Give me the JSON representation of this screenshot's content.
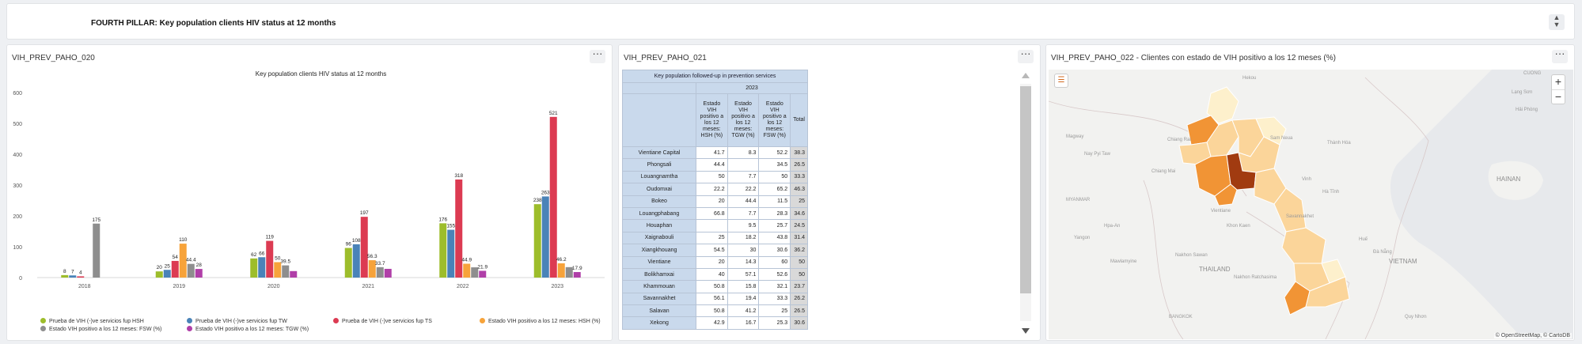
{
  "header": {
    "title": "FOURTH PILLAR: Key population clients HIV status at 12 months"
  },
  "panels": {
    "chart_panel": {
      "title": "VIH_PREV_PAHO_020"
    },
    "table_panel": {
      "title": "VIH_PREV_PAHO_021"
    },
    "map_panel": {
      "title": "VIH_PREV_PAHO_022 - Clientes con estado de VIH positivo a los 12 meses (%)"
    }
  },
  "chart_data": {
    "type": "bar",
    "title": "Key population clients HIV status at 12 months",
    "xlabel": "",
    "ylabel": "",
    "ylim": [
      0,
      600
    ],
    "yticks": [
      0,
      100,
      200,
      300,
      400,
      500,
      600
    ],
    "categories": [
      "2018",
      "2019",
      "2020",
      "2021",
      "2022",
      "2023"
    ],
    "series": [
      {
        "name": "Prueba de VIH (-)ve servicios fup HSH",
        "color": "#9dbd2b",
        "values": [
          8,
          20,
          62,
          96,
          176,
          238
        ],
        "labels": [
          "8",
          "20",
          "62",
          "96",
          "176",
          "238"
        ]
      },
      {
        "name": "Prueba de VIH (-)ve servicios fup TW",
        "color": "#4a83b8",
        "values": [
          7,
          25,
          66,
          108,
          155,
          263
        ],
        "labels": [
          "7",
          "25",
          "66",
          "108",
          "155",
          "263"
        ]
      },
      {
        "name": "Prueba de VIH (-)ve servicios fup TS",
        "color": "#dc3b52",
        "values": [
          4,
          54,
          119,
          197,
          318,
          521
        ],
        "labels": [
          "4",
          "54",
          "119",
          "197",
          "318",
          "521"
        ]
      },
      {
        "name": "Estado VIH positivo a los 12 meses: HSH (%)",
        "color": "#f7a33a",
        "values": [
          null,
          110,
          50,
          56.3,
          44.9,
          46.2
        ],
        "labels": [
          "",
          "110",
          "50",
          "56.3",
          "44.9",
          "46.2"
        ]
      },
      {
        "name": "Estado VIH positivo a los 12 meses: FSW (%)",
        "color": "#8e8e8e",
        "values": [
          175,
          44.4,
          39.5,
          33.7,
          33.2,
          33.8
        ],
        "labels": [
          "175",
          "44.4",
          "39.5",
          "33.7",
          "",
          ""
        ]
      },
      {
        "name": "Estado VIH positivo a los 12 meses: TGW (%)",
        "color": "#b03fa8",
        "values": [
          null,
          28,
          21,
          28.3,
          21.9,
          17.9
        ],
        "labels": [
          "",
          "28",
          "",
          "",
          "21.9",
          "17.9"
        ]
      }
    ],
    "legend_position": "bottom",
    "grid": false
  },
  "table": {
    "caption": "Key population followed-up in prevention services",
    "year": "2023",
    "columns": [
      "Estado VIH positivo a los 12 meses: HSH (%)",
      "Estado VIH positivo a los 12 meses: TGW (%)",
      "Estado VIH positivo a los 12 meses: FSW (%)",
      "Total"
    ],
    "rows": [
      {
        "name": "Vientiane Capital",
        "cells": [
          "41.7",
          "8.3",
          "52.2",
          "38.3"
        ]
      },
      {
        "name": "Phongsali",
        "cells": [
          "44.4",
          "",
          "34.5",
          "26.5"
        ]
      },
      {
        "name": "Louangnamtha",
        "cells": [
          "50",
          "7.7",
          "50",
          "33.3"
        ]
      },
      {
        "name": "Oudomxai",
        "cells": [
          "22.2",
          "22.2",
          "65.2",
          "46.3"
        ]
      },
      {
        "name": "Bokeo",
        "cells": [
          "20",
          "44.4",
          "11.5",
          "25"
        ]
      },
      {
        "name": "Louangphabang",
        "cells": [
          "66.8",
          "7.7",
          "28.3",
          "34.6"
        ]
      },
      {
        "name": "Houaphan",
        "cells": [
          "",
          "9.5",
          "25.7",
          "24.5"
        ]
      },
      {
        "name": "Xaignabouli",
        "cells": [
          "25",
          "18.2",
          "43.8",
          "31.4"
        ]
      },
      {
        "name": "Xiangkhouang",
        "cells": [
          "54.5",
          "30",
          "30.6",
          "36.2"
        ]
      },
      {
        "name": "Vientiane",
        "cells": [
          "20",
          "14.3",
          "60",
          "50"
        ]
      },
      {
        "name": "Bolikhamxai",
        "cells": [
          "40",
          "57.1",
          "52.6",
          "50"
        ]
      },
      {
        "name": "Khammouan",
        "cells": [
          "50.8",
          "15.8",
          "32.1",
          "23.7"
        ]
      },
      {
        "name": "Savannakhet",
        "cells": [
          "56.1",
          "19.4",
          "33.3",
          "26.2"
        ]
      },
      {
        "name": "Salavan",
        "cells": [
          "50.8",
          "41.2",
          "25",
          "26.5"
        ]
      },
      {
        "name": "Xekong",
        "cells": [
          "42.9",
          "16.7",
          "25.3",
          "30.6"
        ]
      }
    ]
  },
  "map": {
    "labels": [
      "CUONG",
      "Lạng Sơn",
      "Hải Phòng",
      "Magway",
      "Nay Pyi Taw",
      "Hpa-An",
      "Yangon",
      "MYANMAR",
      "Mawlamyine",
      "Chiang Mai",
      "Thành Hóa",
      "Vinh",
      "Hà Tĩnh",
      "HAINAN",
      "Khon Kaen",
      "Savannakhet",
      "Huế",
      "Đà Nẵng",
      "THAILAND",
      "Nakhon Sawan",
      "Nakhon Ratchasima",
      "BANGKOK",
      "Quy Nhơn",
      "VIETNAM",
      "Sam Neua",
      "Vientiane",
      "Chiang Rai",
      "Hekou"
    ],
    "attribution": "© OpenStreetMap, © CartoDB",
    "colors": {
      "dark": "#a13b10",
      "medium": "#f19435",
      "light": "#fbd59a",
      "pale": "#fdf0cc"
    }
  }
}
